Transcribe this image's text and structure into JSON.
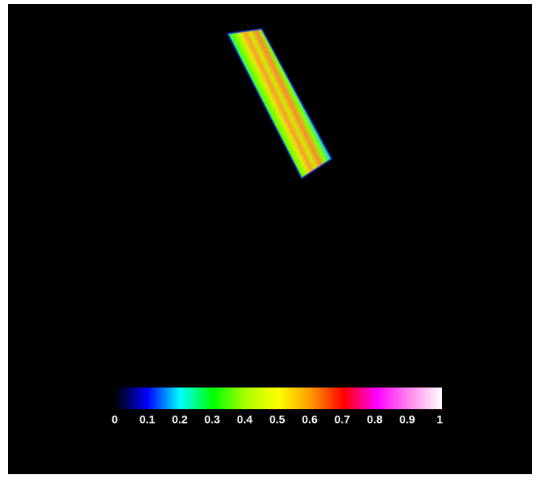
{
  "chart_data": {
    "type": "colorbar",
    "clim": [
      0,
      1
    ],
    "ticks": [
      0,
      0.1,
      0.2,
      0.3,
      0.4,
      0.5,
      0.6,
      0.7,
      0.8,
      0.9,
      1
    ],
    "colors": [
      "#000000",
      "#0000ff",
      "#00ffff",
      "#00ff00",
      "#aaff00",
      "#ffff00",
      "#ff9900",
      "#ff0000",
      "#ff00ff",
      "#ff88ee",
      "#ffffff"
    ]
  }
}
